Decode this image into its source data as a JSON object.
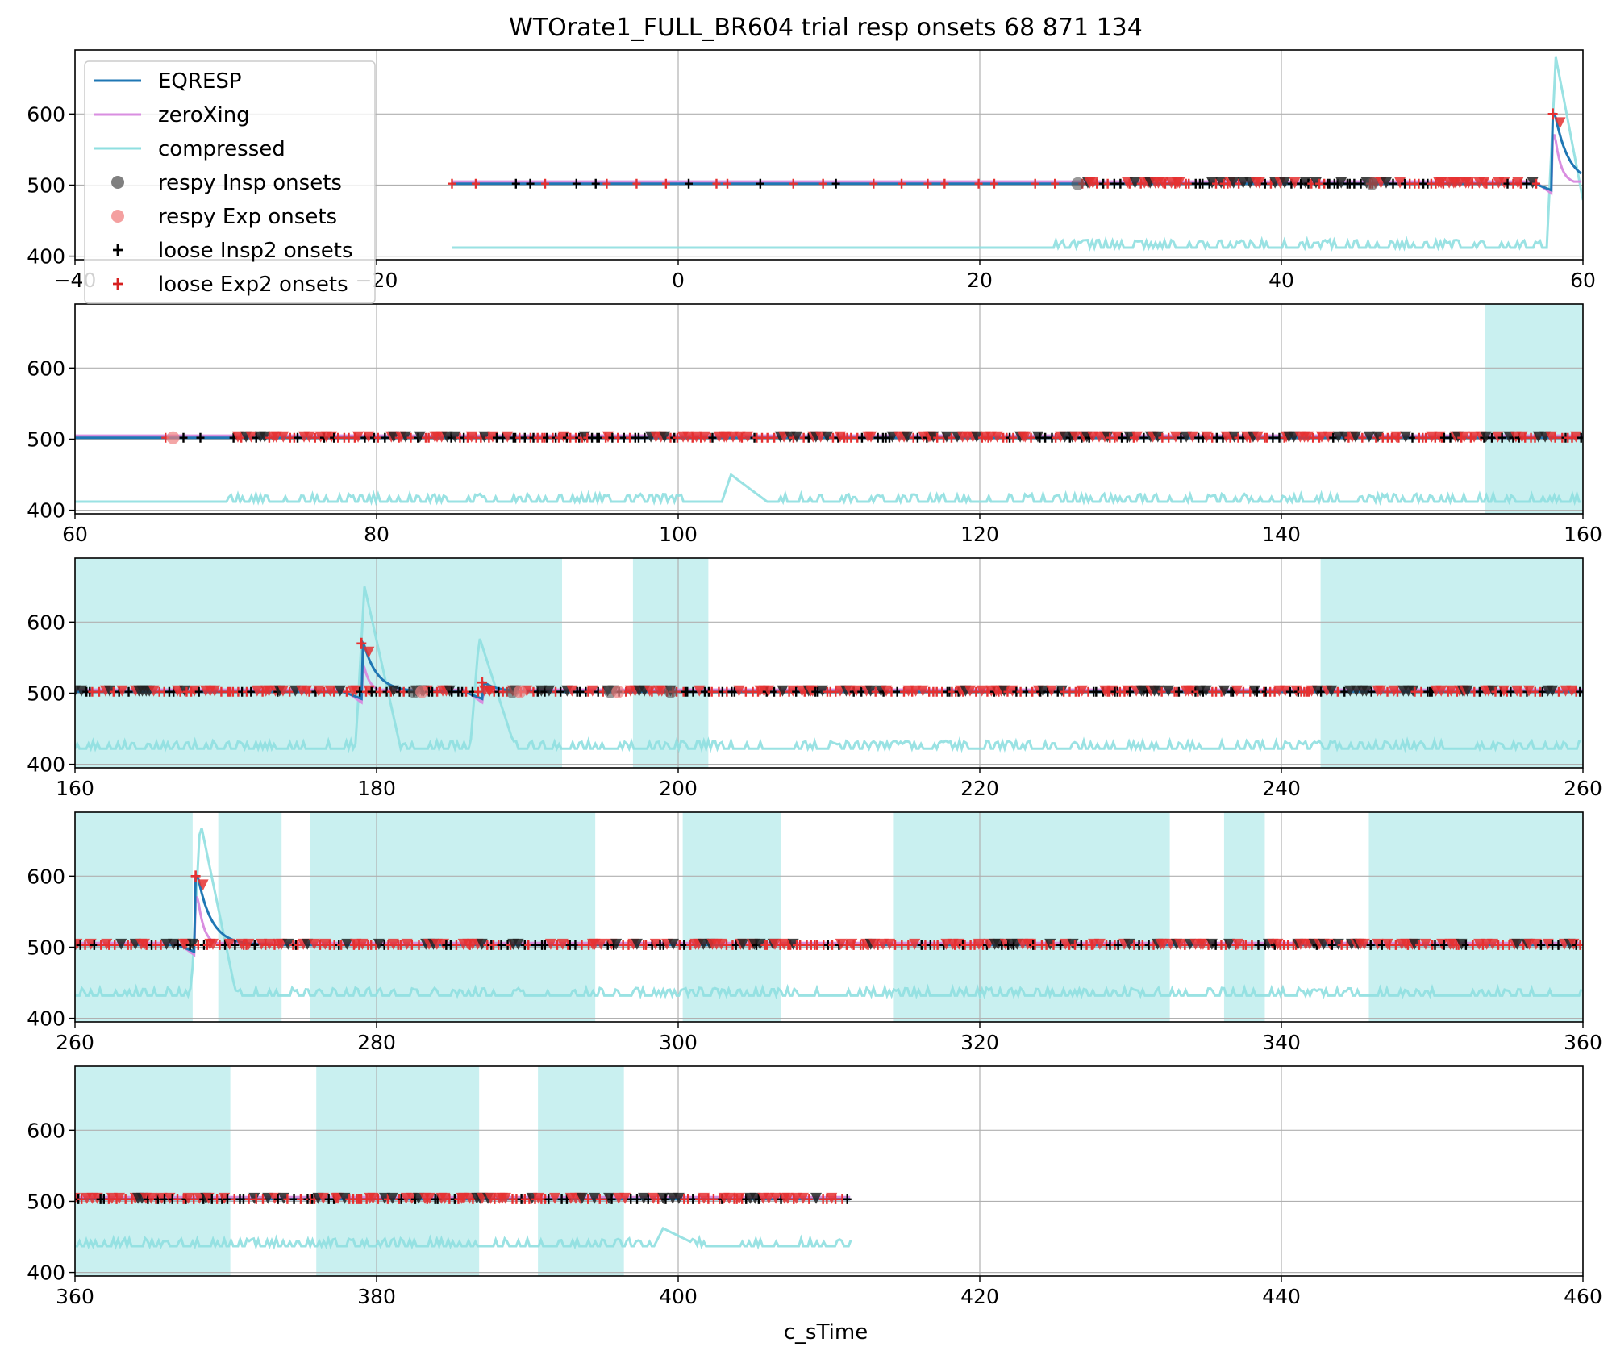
{
  "chart_data": {
    "type": "line",
    "title": "WTOrate1_FULL_BR604 trial resp onsets 68 871 134",
    "xlabel": "c_sTime",
    "ylabel": "",
    "grid": true,
    "legend_placement": "upper-left of first panel",
    "colors": {
      "eqresp": "#1f77b4",
      "zeroxing": "#d98ee0",
      "compressed": "#8fdfe0",
      "band": "#c6efef",
      "insp_marker": "#000000",
      "exp_marker": "#e53030"
    },
    "legend": [
      {
        "label": "EQRESP",
        "kind": "line",
        "color": "#1f77b4"
      },
      {
        "label": "zeroXing",
        "kind": "line",
        "color": "#d98ee0"
      },
      {
        "label": "compressed",
        "kind": "line",
        "color": "#8fdfe0"
      },
      {
        "label": "respy Insp onsets",
        "kind": "circle",
        "color": "#555555"
      },
      {
        "label": "respy Exp onsets",
        "kind": "circle",
        "color": "#f08080"
      },
      {
        "label": "loose Insp2 onsets",
        "kind": "plus",
        "color": "#000000"
      },
      {
        "label": "loose Exp2 onsets",
        "kind": "plus",
        "color": "#d62020"
      }
    ],
    "panels": [
      {
        "xlim": [
          -40,
          60
        ],
        "ylim": [
          395,
          690
        ],
        "xticks": [
          -40,
          -20,
          0,
          20,
          40,
          60
        ],
        "xtick_labels": [
          "−40",
          "−20",
          "0",
          "20",
          "40",
          "60"
        ],
        "yticks": [
          400,
          500,
          600
        ],
        "ytick_labels": [
          "400",
          "500",
          "600"
        ],
        "bands": [],
        "data_start": -15,
        "data_end": 60,
        "baseline": 502,
        "compressed_baseline": 412,
        "spikes": [
          {
            "x": 58.0,
            "peak": 600
          }
        ],
        "compressed_spikes": [
          {
            "x": 58.2,
            "peak": 680
          }
        ],
        "marker_range": [
          -15,
          57
        ],
        "dense_from": 25,
        "insp_circles": [
          26.5,
          46
        ],
        "exp_circles": []
      },
      {
        "xlim": [
          60,
          160
        ],
        "ylim": [
          395,
          690
        ],
        "xticks": [
          60,
          80,
          100,
          120,
          140,
          160
        ],
        "xtick_labels": [
          "60",
          "80",
          "100",
          "120",
          "140",
          "160"
        ],
        "yticks": [
          400,
          500,
          600
        ],
        "ytick_labels": [
          "400",
          "500",
          "600"
        ],
        "bands": [
          [
            153.5,
            160
          ]
        ],
        "data_start": 60,
        "data_end": 160,
        "baseline": 502,
        "compressed_baseline": 412,
        "spikes": [],
        "compressed_spikes": [
          {
            "x": 103.5,
            "peak": 450
          }
        ],
        "marker_range": [
          66,
          160
        ],
        "dense_from": 70,
        "insp_circles": [],
        "exp_circles": [
          66.5
        ]
      },
      {
        "xlim": [
          160,
          260
        ],
        "ylim": [
          395,
          690
        ],
        "xticks": [
          160,
          180,
          200,
          220,
          240,
          260
        ],
        "xtick_labels": [
          "160",
          "180",
          "200",
          "220",
          "240",
          "260"
        ],
        "yticks": [
          400,
          500,
          600
        ],
        "ytick_labels": [
          "400",
          "500",
          "600"
        ],
        "bands": [
          [
            160,
            192.3
          ],
          [
            197,
            202
          ],
          [
            242.6,
            260
          ]
        ],
        "data_start": 160,
        "data_end": 260,
        "baseline": 502,
        "compressed_baseline": 422,
        "spikes": [
          {
            "x": 179,
            "peak": 570
          },
          {
            "x": 187,
            "peak": 515
          }
        ],
        "compressed_spikes": [
          {
            "x": 179.2,
            "peak": 650
          },
          {
            "x": 186.8,
            "peak": 580
          }
        ],
        "marker_range": [
          160,
          260
        ],
        "dense_from": 160,
        "insp_circles": [
          182.5,
          189,
          195.5,
          199.5
        ],
        "exp_circles": [
          183,
          189.5,
          196
        ]
      },
      {
        "xlim": [
          260,
          360
        ],
        "ylim": [
          395,
          690
        ],
        "xticks": [
          260,
          280,
          300,
          320,
          340,
          360
        ],
        "xtick_labels": [
          "260",
          "280",
          "300",
          "320",
          "340",
          "360"
        ],
        "yticks": [
          400,
          500,
          600
        ],
        "ytick_labels": [
          "400",
          "500",
          "600"
        ],
        "bands": [
          [
            260,
            267.8
          ],
          [
            269.5,
            273.7
          ],
          [
            275.6,
            294.5
          ],
          [
            300.3,
            306.8
          ],
          [
            314.3,
            332.6
          ],
          [
            336.2,
            338.9
          ],
          [
            345.8,
            360
          ]
        ],
        "data_start": 260,
        "data_end": 360,
        "baseline": 503,
        "compressed_baseline": 432,
        "spikes": [
          {
            "x": 268,
            "peak": 600
          }
        ],
        "compressed_spikes": [
          {
            "x": 268.3,
            "peak": 678
          }
        ],
        "marker_range": [
          260,
          360
        ],
        "dense_from": 260,
        "insp_circles": [],
        "exp_circles": []
      },
      {
        "xlim": [
          360,
          460
        ],
        "ylim": [
          395,
          690
        ],
        "xticks": [
          360,
          380,
          400,
          420,
          440,
          460
        ],
        "xtick_labels": [
          "360",
          "380",
          "400",
          "420",
          "440",
          "460"
        ],
        "yticks": [
          400,
          500,
          600
        ],
        "ytick_labels": [
          "400",
          "500",
          "600"
        ],
        "bands": [
          [
            360,
            370.3
          ],
          [
            376,
            386.8
          ],
          [
            390.7,
            396.4
          ]
        ],
        "data_start": 360,
        "data_end": 411.5,
        "baseline": 503,
        "compressed_baseline": 437,
        "spikes": [],
        "compressed_spikes": [
          {
            "x": 399,
            "peak": 462
          }
        ],
        "marker_range": [
          360,
          411.5
        ],
        "dense_from": 360,
        "insp_circles": [],
        "exp_circles": []
      }
    ]
  }
}
